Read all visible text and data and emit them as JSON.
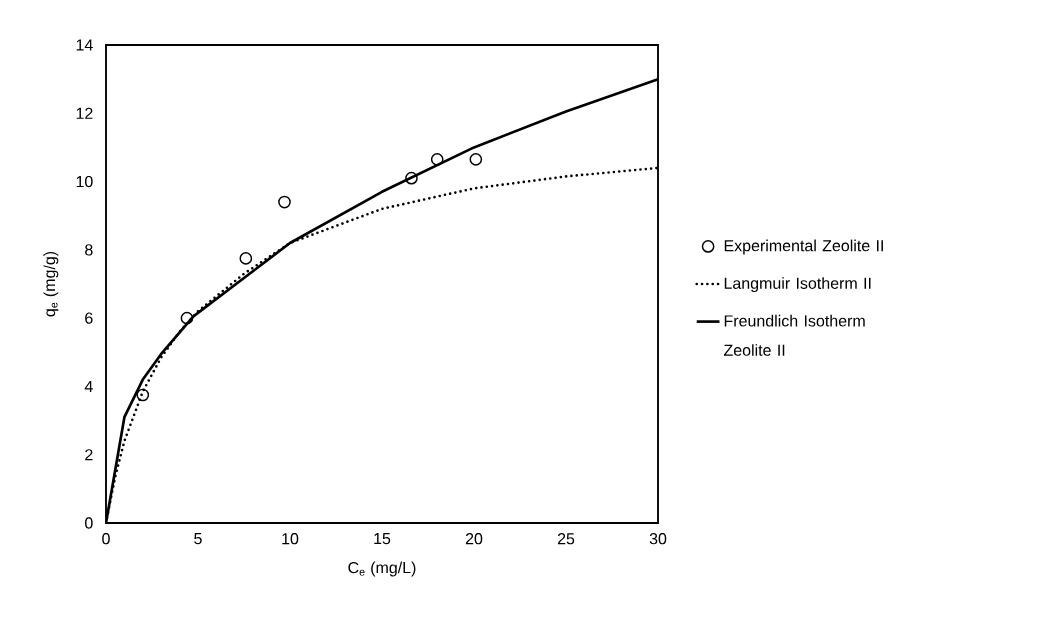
{
  "chart_data": {
    "type": "line",
    "xlabel": "C$_{e}$ (mg/L)",
    "ylabel": "q$_{e}$ (mg/g)",
    "xlim": [
      0,
      30
    ],
    "ylim": [
      0,
      14
    ],
    "xticks": [
      0,
      5,
      10,
      15,
      20,
      25,
      30
    ],
    "yticks": [
      0,
      2,
      4,
      6,
      8,
      10,
      12,
      14
    ],
    "grid": false,
    "legend": "right",
    "series": [
      {
        "name": "Experimental Zeolite II",
        "type": "scatter",
        "marker": "circle",
        "color": "#000000",
        "x": [
          2.0,
          4.4,
          7.6,
          9.7,
          16.6,
          18.0,
          20.1
        ],
        "values": [
          3.75,
          6.0,
          7.75,
          9.4,
          10.1,
          10.65,
          10.65
        ]
      },
      {
        "name": "Langmuir Isotherm II",
        "line_style": "dotted",
        "color": "#000000",
        "x": [
          0,
          0.5,
          1,
          2,
          3,
          4,
          5,
          7.5,
          10,
          15,
          20,
          25,
          30
        ],
        "values": [
          0,
          1.35,
          2.4,
          3.85,
          4.85,
          5.6,
          6.2,
          7.3,
          8.2,
          9.2,
          9.8,
          10.15,
          10.4
        ]
      },
      {
        "name": "Freundlich Isotherm Zeolite II",
        "line_style": "solid",
        "color": "#000000",
        "x": [
          0,
          1,
          2,
          3,
          4.75,
          10,
          15,
          20,
          25,
          30
        ],
        "values": [
          0,
          3.1,
          4.2,
          4.95,
          6.05,
          8.2,
          9.7,
          11.0,
          12.05,
          13.0
        ]
      }
    ]
  }
}
